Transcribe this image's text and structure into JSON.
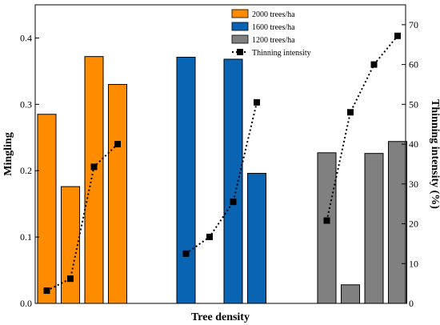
{
  "chart_data": {
    "type": "bar",
    "xlabel": "Tree density",
    "ylabel": "Mingling",
    "y2label": "Thinning intensity (%)",
    "ylim": [
      0,
      0.45
    ],
    "y2lim": [
      0,
      75
    ],
    "yticks": [
      "0.0",
      "0.1",
      "0.2",
      "0.3",
      "0.4"
    ],
    "y2ticks": [
      "0",
      "10",
      "20",
      "30",
      "40",
      "50",
      "60",
      "70"
    ],
    "legend_position": "top-center",
    "groups": [
      {
        "name": "2000 trees/ha",
        "color": "#ff8c00",
        "mingling": [
          0.285,
          0.176,
          0.372,
          0.33
        ],
        "thinning": [
          3.2,
          6.2,
          34.3,
          40.0
        ]
      },
      {
        "name": "1600 trees/ha",
        "color": "#0a64b4",
        "mingling": [
          0.371,
          null,
          0.368,
          0.196
        ],
        "thinning": [
          12.5,
          16.7,
          25.5,
          50.5
        ]
      },
      {
        "name": "1200 trees/ha",
        "color": "#808080",
        "mingling": [
          0.227,
          0.028,
          0.226,
          0.244
        ],
        "thinning": [
          20.8,
          48.0,
          60.0,
          67.2
        ]
      }
    ],
    "line_series": {
      "name": "Thinning intensity",
      "marker": "square",
      "style": "dotted",
      "color": "#000000"
    }
  }
}
